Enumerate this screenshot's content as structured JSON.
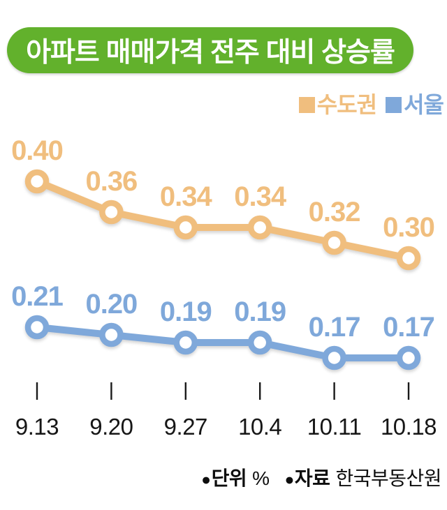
{
  "header": {
    "title": "아파트 매매가격 전주 대비 상승률"
  },
  "colors": {
    "header_bg": "#62b12c",
    "header_text": "#ffffff",
    "metro_orange": "#f0be7e",
    "seoul_blue": "#7fa8da",
    "axis_text": "#161616"
  },
  "legend": {
    "items": [
      {
        "label": "수도권",
        "color": "#f0be7e"
      },
      {
        "label": "서울",
        "color": "#7fa8da"
      }
    ]
  },
  "chart_data": {
    "type": "line",
    "title": "아파트 매매가격 전주 대비 상승률",
    "categories": [
      "9.13",
      "9.20",
      "9.27",
      "10.4",
      "10.11",
      "10.18"
    ],
    "series": [
      {
        "name": "수도권",
        "color": "#f0be7e",
        "values": [
          0.4,
          0.36,
          0.34,
          0.34,
          0.32,
          0.3
        ],
        "labels": [
          "0.40",
          "0.36",
          "0.34",
          "0.34",
          "0.32",
          "0.30"
        ]
      },
      {
        "name": "서울",
        "color": "#7fa8da",
        "values": [
          0.21,
          0.2,
          0.19,
          0.19,
          0.17,
          0.17
        ],
        "labels": [
          "0.21",
          "0.20",
          "0.19",
          "0.19",
          "0.17",
          "0.17"
        ]
      }
    ],
    "xlabel": "",
    "ylabel": "",
    "unit": "%",
    "ylim": [
      0.15,
      0.42
    ],
    "grid": false,
    "legend_position": "top-right",
    "marker": "open-circle"
  },
  "footer": {
    "bullet": "●",
    "unit_label": "단위",
    "unit_value": "%",
    "source_label": "자료",
    "source_value": "한국부동산원"
  }
}
